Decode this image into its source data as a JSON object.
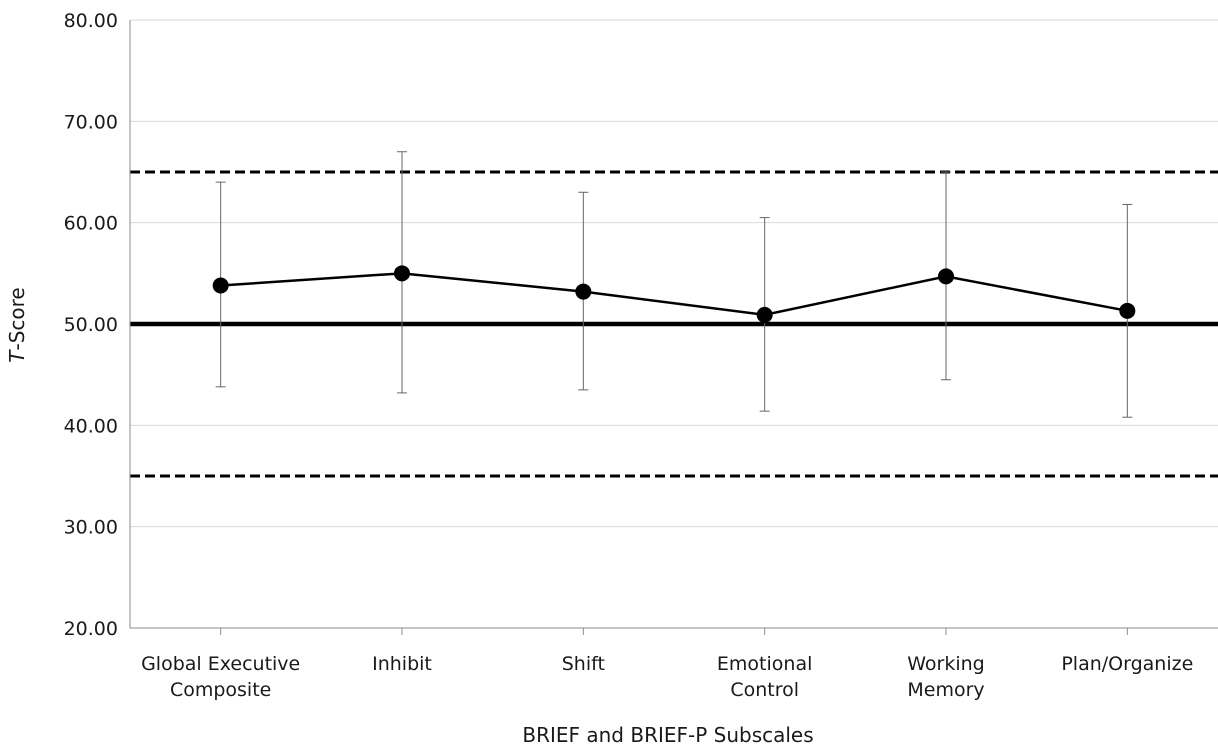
{
  "chart_data": {
    "type": "line",
    "categories": [
      [
        "Global Executive",
        "Composite"
      ],
      [
        "Inhibit"
      ],
      [
        "Shift"
      ],
      [
        "Emotional",
        "Control"
      ],
      [
        "Working",
        "Memory"
      ],
      [
        "Plan/Organize"
      ]
    ],
    "values": [
      53.8,
      55.0,
      53.2,
      50.9,
      54.7,
      51.3
    ],
    "error_bars": {
      "upper": [
        64.0,
        67.0,
        63.0,
        60.5,
        65.0,
        61.8
      ],
      "lower": [
        43.8,
        43.2,
        43.5,
        41.4,
        44.5,
        40.8
      ]
    },
    "reference_lines": [
      {
        "value": 50,
        "style": "solid"
      },
      {
        "value": 65,
        "style": "dashed"
      },
      {
        "value": 35,
        "style": "dashed"
      }
    ],
    "yticks": [
      "20.00",
      "30.00",
      "40.00",
      "50.00",
      "60.00",
      "70.00",
      "80.00"
    ],
    "ylim": [
      20,
      80
    ],
    "ylabel_prefix": "T",
    "ylabel_suffix": "-Score",
    "xlabel": "BRIEF and BRIEF-P Subscales",
    "grid": true,
    "colors": {
      "line": "#000000",
      "grid": "#d9d9d9",
      "axis": "#8c8c8c"
    }
  }
}
